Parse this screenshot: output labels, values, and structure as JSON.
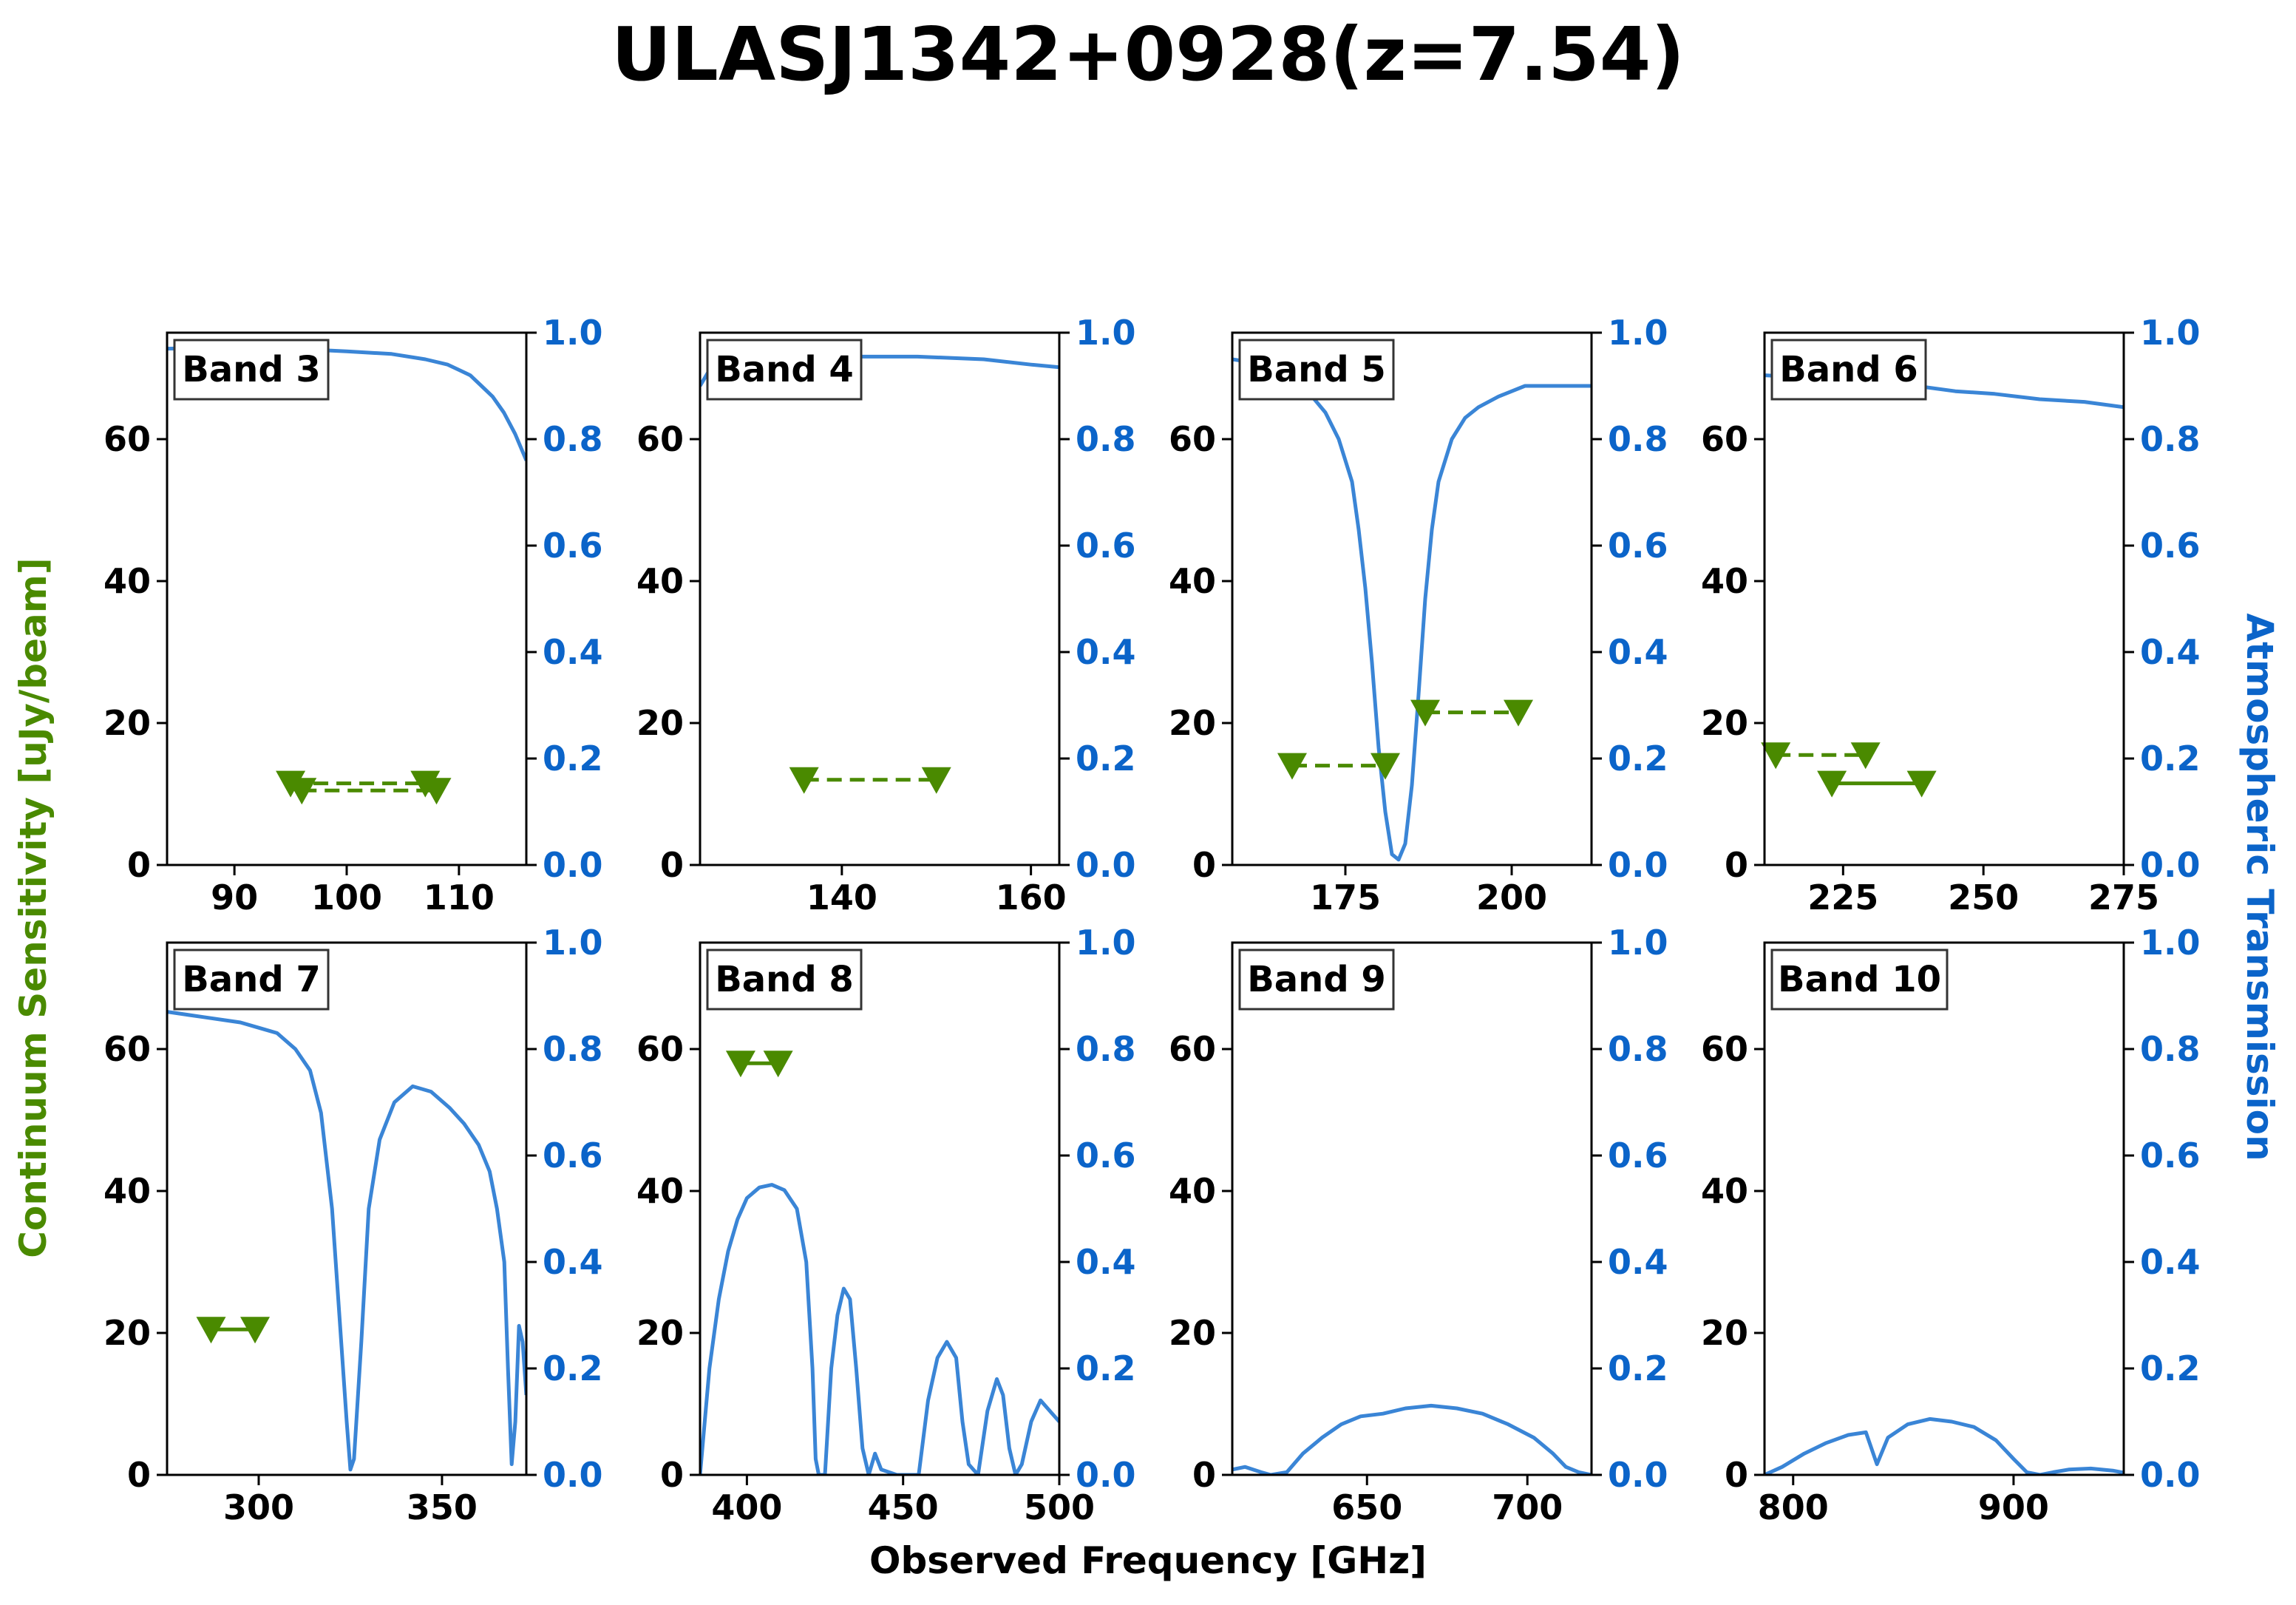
{
  "title": "ULASJ1342+0928(z=7.54)",
  "xlabel": "Observed Frequency [GHz]",
  "ylabel_left": "Continuum Sensitivity [uJy/beam]",
  "ylabel_right": "Atmospheric Transmission",
  "colors": {
    "sensitivity": "#4a8a00",
    "transmission": "#3a85d6",
    "right_axis": "#0b64c9"
  },
  "chart_data": [
    {
      "type": "line",
      "band_label": "Band 3",
      "xlim": [
        84,
        116
      ],
      "xticks": [
        90,
        100,
        110
      ],
      "ylim": [
        0,
        75
      ],
      "yticks": [
        0,
        20,
        40,
        60
      ],
      "y2lim": [
        0,
        1
      ],
      "y2ticks": [
        "0.0",
        "0.2",
        "0.4",
        "0.6",
        "0.8",
        "1.0"
      ],
      "transmission": [
        [
          84,
          0.97
        ],
        [
          90,
          0.972
        ],
        [
          95,
          0.97
        ],
        [
          100,
          0.965
        ],
        [
          104,
          0.96
        ],
        [
          107,
          0.95
        ],
        [
          109,
          0.94
        ],
        [
          110,
          0.93
        ],
        [
          111,
          0.92
        ],
        [
          112,
          0.9
        ],
        [
          113,
          0.88
        ],
        [
          114,
          0.85
        ],
        [
          115,
          0.81
        ],
        [
          116,
          0.76
        ]
      ],
      "markers": [
        {
          "x": [
            95,
            107
          ],
          "y": [
            11.5,
            11.5
          ],
          "linestyle": "dashed"
        },
        {
          "x": [
            96,
            108
          ],
          "y": [
            10.5,
            10.5
          ],
          "linestyle": "dashed"
        }
      ]
    },
    {
      "type": "line",
      "band_label": "Band 4",
      "xlim": [
        125,
        163
      ],
      "xticks": [
        140,
        160
      ],
      "ylim": [
        0,
        75
      ],
      "yticks": [
        0,
        20,
        40,
        60
      ],
      "y2lim": [
        0,
        1
      ],
      "y2ticks": [
        "0.0",
        "0.2",
        "0.4",
        "0.6",
        "0.8",
        "1.0"
      ],
      "transmission": [
        [
          125,
          0.9
        ],
        [
          126,
          0.93
        ],
        [
          128,
          0.945
        ],
        [
          132,
          0.95
        ],
        [
          140,
          0.955
        ],
        [
          148,
          0.955
        ],
        [
          155,
          0.95
        ],
        [
          160,
          0.94
        ],
        [
          163,
          0.935
        ]
      ],
      "markers": [
        {
          "x": [
            136,
            150
          ],
          "y": [
            12,
            12
          ],
          "linestyle": "dashed"
        }
      ]
    },
    {
      "type": "line",
      "band_label": "Band 5",
      "xlim": [
        158,
        212
      ],
      "xticks": [
        175,
        200
      ],
      "ylim": [
        0,
        75
      ],
      "yticks": [
        0,
        20,
        40,
        60
      ],
      "y2lim": [
        0,
        1
      ],
      "y2ticks": [
        "0.0",
        "0.2",
        "0.4",
        "0.6",
        "0.8",
        "1.0"
      ],
      "transmission": [
        [
          158,
          0.95
        ],
        [
          163,
          0.94
        ],
        [
          166,
          0.92
        ],
        [
          168,
          0.9
        ],
        [
          170,
          0.88
        ],
        [
          172,
          0.85
        ],
        [
          174,
          0.8
        ],
        [
          176,
          0.72
        ],
        [
          177,
          0.63
        ],
        [
          178,
          0.52
        ],
        [
          179,
          0.38
        ],
        [
          180,
          0.22
        ],
        [
          181,
          0.1
        ],
        [
          182,
          0.02
        ],
        [
          183,
          0.01
        ],
        [
          184,
          0.04
        ],
        [
          185,
          0.15
        ],
        [
          186,
          0.32
        ],
        [
          187,
          0.5
        ],
        [
          188,
          0.63
        ],
        [
          189,
          0.72
        ],
        [
          191,
          0.8
        ],
        [
          193,
          0.84
        ],
        [
          195,
          0.86
        ],
        [
          198,
          0.88
        ],
        [
          202,
          0.9
        ],
        [
          206,
          0.9
        ],
        [
          210,
          0.9
        ],
        [
          212,
          0.9
        ]
      ],
      "markers": [
        {
          "x": [
            167,
            181
          ],
          "y": [
            14,
            14
          ],
          "linestyle": "dashed"
        },
        {
          "x": [
            187,
            201
          ],
          "y": [
            21.5,
            21.5
          ],
          "linestyle": "dashed"
        }
      ]
    },
    {
      "type": "line",
      "band_label": "Band 6",
      "xlim": [
        211,
        275
      ],
      "xticks": [
        225,
        250,
        275
      ],
      "ylim": [
        0,
        75
      ],
      "yticks": [
        0,
        20,
        40,
        60
      ],
      "y2lim": [
        0,
        1
      ],
      "y2ticks": [
        "0.0",
        "0.2",
        "0.4",
        "0.6",
        "0.8",
        "1.0"
      ],
      "transmission": [
        [
          211,
          0.92
        ],
        [
          220,
          0.915
        ],
        [
          230,
          0.91
        ],
        [
          238,
          0.9
        ],
        [
          245,
          0.89
        ],
        [
          252,
          0.885
        ],
        [
          260,
          0.875
        ],
        [
          268,
          0.87
        ],
        [
          275,
          0.86
        ]
      ],
      "markers": [
        {
          "x": [
            213,
            229
          ],
          "y": [
            15.5,
            15.5
          ],
          "linestyle": "dashed"
        },
        {
          "x": [
            223,
            239
          ],
          "y": [
            11.5,
            11.5
          ],
          "linestyle": "solid"
        }
      ]
    },
    {
      "type": "line",
      "band_label": "Band 7",
      "xlim": [
        275,
        373
      ],
      "xticks": [
        300,
        350
      ],
      "ylim": [
        0,
        75
      ],
      "yticks": [
        0,
        20,
        40,
        60
      ],
      "y2lim": [
        0,
        1
      ],
      "y2ticks": [
        "0.0",
        "0.2",
        "0.4",
        "0.6",
        "0.8",
        "1.0"
      ],
      "transmission": [
        [
          275,
          0.87
        ],
        [
          285,
          0.86
        ],
        [
          295,
          0.85
        ],
        [
          300,
          0.84
        ],
        [
          305,
          0.83
        ],
        [
          310,
          0.8
        ],
        [
          314,
          0.76
        ],
        [
          317,
          0.68
        ],
        [
          320,
          0.5
        ],
        [
          322,
          0.3
        ],
        [
          324,
          0.1
        ],
        [
          325,
          0.01
        ],
        [
          326,
          0.03
        ],
        [
          328,
          0.25
        ],
        [
          330,
          0.5
        ],
        [
          333,
          0.63
        ],
        [
          337,
          0.7
        ],
        [
          342,
          0.73
        ],
        [
          347,
          0.72
        ],
        [
          352,
          0.69
        ],
        [
          356,
          0.66
        ],
        [
          360,
          0.62
        ],
        [
          363,
          0.57
        ],
        [
          365,
          0.5
        ],
        [
          367,
          0.4
        ],
        [
          368,
          0.2
        ],
        [
          369,
          0.02
        ],
        [
          370,
          0.1
        ],
        [
          371,
          0.28
        ],
        [
          372,
          0.25
        ],
        [
          373,
          0.15
        ]
      ],
      "markers": [
        {
          "x": [
            287,
            299
          ],
          "y": [
            20.5,
            20.5
          ],
          "linestyle": "solid"
        }
      ]
    },
    {
      "type": "line",
      "band_label": "Band 8",
      "xlim": [
        385,
        500
      ],
      "xticks": [
        400,
        450,
        500
      ],
      "ylim": [
        0,
        75
      ],
      "yticks": [
        0,
        20,
        40,
        60
      ],
      "y2lim": [
        0,
        1
      ],
      "y2ticks": [
        "0.0",
        "0.2",
        "0.4",
        "0.6",
        "0.8",
        "1.0"
      ],
      "transmission": [
        [
          385,
          0.0
        ],
        [
          388,
          0.2
        ],
        [
          391,
          0.33
        ],
        [
          394,
          0.42
        ],
        [
          397,
          0.48
        ],
        [
          400,
          0.52
        ],
        [
          404,
          0.54
        ],
        [
          408,
          0.545
        ],
        [
          412,
          0.535
        ],
        [
          416,
          0.5
        ],
        [
          419,
          0.4
        ],
        [
          421,
          0.2
        ],
        [
          422,
          0.03
        ],
        [
          423,
          0.0
        ],
        [
          425,
          0.0
        ],
        [
          427,
          0.2
        ],
        [
          429,
          0.3
        ],
        [
          431,
          0.35
        ],
        [
          433,
          0.33
        ],
        [
          435,
          0.2
        ],
        [
          437,
          0.05
        ],
        [
          439,
          0.0
        ],
        [
          441,
          0.04
        ],
        [
          443,
          0.01
        ],
        [
          448,
          0.0
        ],
        [
          455,
          0.0
        ],
        [
          458,
          0.14
        ],
        [
          461,
          0.22
        ],
        [
          464,
          0.25
        ],
        [
          467,
          0.22
        ],
        [
          469,
          0.1
        ],
        [
          471,
          0.02
        ],
        [
          474,
          0.0
        ],
        [
          477,
          0.12
        ],
        [
          480,
          0.18
        ],
        [
          482,
          0.15
        ],
        [
          484,
          0.05
        ],
        [
          486,
          0.0
        ],
        [
          488,
          0.02
        ],
        [
          491,
          0.1
        ],
        [
          494,
          0.14
        ],
        [
          497,
          0.12
        ],
        [
          500,
          0.1
        ]
      ],
      "markers": [
        {
          "x": [
            398,
            410
          ],
          "y": [
            58,
            58
          ],
          "linestyle": "solid"
        }
      ]
    },
    {
      "type": "line",
      "band_label": "Band 9",
      "xlim": [
        608,
        720
      ],
      "xticks": [
        650,
        700
      ],
      "ylim": [
        0,
        75
      ],
      "yticks": [
        0,
        20,
        40,
        60
      ],
      "y2lim": [
        0,
        1
      ],
      "y2ticks": [
        "0.0",
        "0.2",
        "0.4",
        "0.6",
        "0.8",
        "1.0"
      ],
      "transmission": [
        [
          608,
          0.01
        ],
        [
          612,
          0.015
        ],
        [
          617,
          0.005
        ],
        [
          620,
          0.0
        ],
        [
          625,
          0.005
        ],
        [
          630,
          0.04
        ],
        [
          636,
          0.07
        ],
        [
          642,
          0.095
        ],
        [
          648,
          0.11
        ],
        [
          655,
          0.115
        ],
        [
          662,
          0.125
        ],
        [
          670,
          0.13
        ],
        [
          678,
          0.125
        ],
        [
          686,
          0.115
        ],
        [
          694,
          0.095
        ],
        [
          702,
          0.07
        ],
        [
          708,
          0.04
        ],
        [
          712,
          0.015
        ],
        [
          716,
          0.005
        ],
        [
          720,
          0.0
        ]
      ],
      "markers": []
    },
    {
      "type": "line",
      "band_label": "Band 10",
      "xlim": [
        787,
        950
      ],
      "xticks": [
        800,
        900
      ],
      "ylim": [
        0,
        75
      ],
      "yticks": [
        0,
        20,
        40,
        60
      ],
      "y2lim": [
        0,
        1
      ],
      "y2ticks": [
        "0.0",
        "0.2",
        "0.4",
        "0.6",
        "0.8",
        "1.0"
      ],
      "transmission": [
        [
          787,
          0.0
        ],
        [
          795,
          0.015
        ],
        [
          805,
          0.04
        ],
        [
          815,
          0.06
        ],
        [
          825,
          0.075
        ],
        [
          833,
          0.08
        ],
        [
          838,
          0.02
        ],
        [
          843,
          0.07
        ],
        [
          852,
          0.095
        ],
        [
          862,
          0.105
        ],
        [
          872,
          0.1
        ],
        [
          882,
          0.09
        ],
        [
          892,
          0.065
        ],
        [
          900,
          0.03
        ],
        [
          906,
          0.005
        ],
        [
          912,
          0.0
        ],
        [
          918,
          0.005
        ],
        [
          925,
          0.01
        ],
        [
          935,
          0.012
        ],
        [
          945,
          0.008
        ],
        [
          950,
          0.004
        ]
      ],
      "markers": []
    }
  ]
}
